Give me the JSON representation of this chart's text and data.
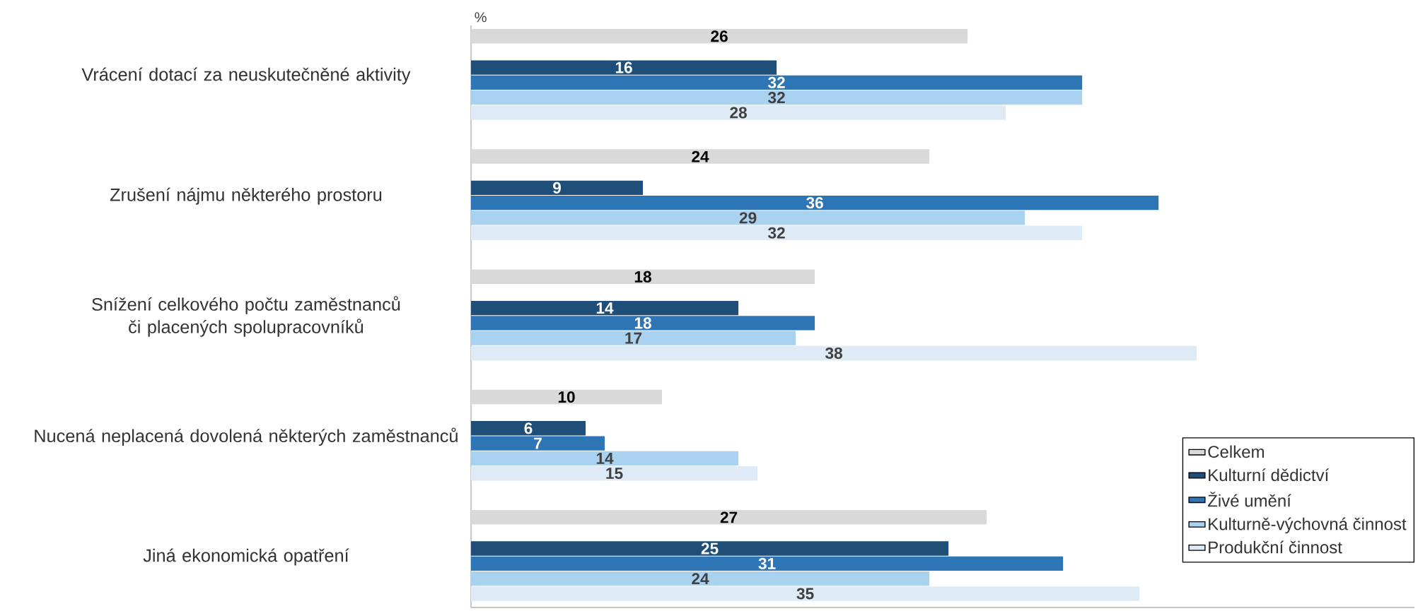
{
  "chart_data": {
    "type": "bar",
    "orientation": "horizontal",
    "xlabel": "%",
    "categories": [
      "Vrácení dotací za neuskutečněné aktivity",
      "Zrušení nájmu některého prostoru",
      "Snížení celkového počtu zaměstnanců či placených spolupracovníků",
      "Nucená neplacená dovolená některých zaměstnanců",
      "Jiná ekonomická opatření"
    ],
    "series": [
      {
        "name": "Celkem",
        "color": "#d9d9d9",
        "values": [
          26,
          24,
          18,
          10,
          27
        ]
      },
      {
        "name": "Kulturní dědictví",
        "color": "#1f4e79",
        "values": [
          16,
          9,
          14,
          6,
          25
        ]
      },
      {
        "name": "Živé umění",
        "color": "#2e75b6",
        "values": [
          32,
          36,
          18,
          7,
          31
        ]
      },
      {
        "name": "Kulturně-výchovná činnost",
        "color": "#a9d1f0",
        "values": [
          32,
          29,
          17,
          14,
          24
        ]
      },
      {
        "name": "Produkční činnost",
        "color": "#deebf7",
        "values": [
          28,
          32,
          38,
          15,
          35
        ]
      }
    ],
    "data_labels": true,
    "legend": "bottom right"
  }
}
